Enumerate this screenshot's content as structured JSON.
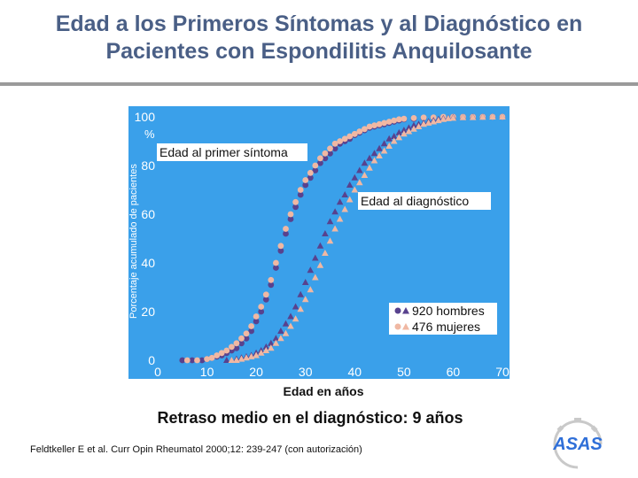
{
  "slide": {
    "title_line1": "Edad a los Primeros Síntomas y al Diagnóstico en",
    "title_line2": "Pacientes con Espondilitis Anquilosante",
    "summary": "Retraso medio en el diagnóstico: 9 años",
    "citation": "Feldtkeller E et al. Curr Opin Rheumatol 2000;12: 239-247 (con autorización)",
    "logo_text": "ASAS"
  },
  "colors": {
    "title": "#4a5f86",
    "plot_background": "#3aa0ea",
    "axis_tick_text": "#ffffff",
    "men": "#58428e",
    "women": "#f0b8a3"
  },
  "chart_data": {
    "type": "scatter",
    "xlabel": "Edad en años",
    "ylabel": "Porcentaje acumulado de pacientes",
    "y_unit": "%",
    "xlim": [
      0,
      70
    ],
    "ylim": [
      0,
      100
    ],
    "xticks": [
      "0",
      "10",
      "20",
      "30",
      "40",
      "50",
      "60",
      "70"
    ],
    "yticks": [
      "0",
      "20",
      "40",
      "60",
      "80",
      "100"
    ],
    "grid": false,
    "legend": {
      "position": "bottom-right",
      "entries": [
        "920 hombres",
        "476 mujeres"
      ]
    },
    "annotations": [
      "Edad al primer síntoma",
      "Edad al diagnóstico"
    ],
    "series": [
      {
        "name": "920 hombres",
        "group": "Edad al primer síntoma",
        "marker": "circle",
        "color": "#58428e",
        "x": [
          5,
          7,
          9,
          10,
          11,
          12,
          13,
          14,
          15,
          16,
          17,
          18,
          19,
          20,
          21,
          22,
          23,
          24,
          25,
          26,
          27,
          28,
          29,
          30,
          31,
          32,
          33,
          34,
          35,
          36,
          37,
          38,
          39,
          40,
          41,
          42,
          43,
          44,
          45,
          46,
          47,
          48,
          49,
          50,
          52,
          54,
          56,
          58,
          60,
          62,
          64,
          66,
          68,
          70
        ],
        "y": [
          0,
          0,
          0,
          0.5,
          1,
          1.5,
          2,
          3,
          4,
          5,
          7,
          9,
          12,
          16,
          20,
          25,
          31,
          38,
          45,
          52,
          58,
          63,
          68,
          72,
          75,
          78,
          81,
          83,
          85,
          87,
          89,
          90,
          91,
          92.5,
          93.5,
          94.5,
          95.5,
          96,
          96.5,
          97,
          97.5,
          98,
          98.5,
          99,
          99.2,
          99.5,
          99.7,
          99.8,
          100,
          100,
          100,
          100,
          100,
          100
        ]
      },
      {
        "name": "476 mujeres",
        "group": "Edad al primer síntoma",
        "marker": "circle",
        "color": "#f0b8a3",
        "x": [
          6,
          8,
          10,
          11,
          12,
          13,
          14,
          15,
          16,
          17,
          18,
          19,
          20,
          21,
          22,
          23,
          24,
          25,
          26,
          27,
          28,
          29,
          30,
          31,
          32,
          33,
          34,
          35,
          36,
          37,
          38,
          39,
          40,
          41,
          42,
          43,
          44,
          45,
          46,
          47,
          48,
          49,
          50,
          52,
          54,
          56,
          58,
          60,
          62,
          64,
          66,
          68,
          70
        ],
        "y": [
          0,
          0,
          0.5,
          1,
          2,
          3,
          4,
          5.5,
          7,
          9,
          11,
          14,
          18,
          22,
          27,
          33,
          40,
          47,
          54,
          60,
          65,
          70,
          74,
          77,
          80,
          83,
          85,
          87,
          89,
          90,
          91,
          92,
          93,
          94,
          95,
          96,
          96.5,
          97,
          97.5,
          98,
          98.5,
          99,
          99.2,
          99.5,
          99.7,
          99.8,
          100,
          100,
          100,
          100,
          100,
          100,
          100
        ]
      },
      {
        "name": "920 hombres",
        "group": "Edad al diagnóstico",
        "marker": "triangle",
        "color": "#58428e",
        "x": [
          14,
          15,
          16,
          17,
          18,
          19,
          20,
          21,
          22,
          23,
          24,
          25,
          26,
          27,
          28,
          29,
          30,
          31,
          32,
          33,
          34,
          35,
          36,
          37,
          38,
          39,
          40,
          41,
          42,
          43,
          44,
          45,
          46,
          47,
          48,
          49,
          50,
          51,
          52,
          53,
          54,
          55,
          56,
          57,
          58,
          59,
          60,
          62,
          64,
          66,
          68,
          70
        ],
        "y": [
          0,
          0,
          0.5,
          1,
          1.5,
          2,
          3,
          4,
          5.5,
          7,
          9,
          12,
          15,
          18,
          22,
          27,
          32,
          37,
          42,
          47,
          52,
          57,
          61,
          65,
          68,
          72,
          75,
          78,
          81,
          83,
          85,
          87,
          89,
          91,
          92,
          93.5,
          94.5,
          95.5,
          96.5,
          97,
          97.5,
          98,
          98.5,
          99,
          99.3,
          99.5,
          99.7,
          99.8,
          99.9,
          100,
          100,
          100
        ]
      },
      {
        "name": "476 mujeres",
        "group": "Edad al diagnóstico",
        "marker": "triangle",
        "color": "#f0b8a3",
        "x": [
          15,
          16,
          17,
          18,
          19,
          20,
          21,
          22,
          23,
          24,
          25,
          26,
          27,
          28,
          29,
          30,
          31,
          32,
          33,
          34,
          35,
          36,
          37,
          38,
          39,
          40,
          41,
          42,
          43,
          44,
          45,
          46,
          47,
          48,
          49,
          50,
          51,
          52,
          53,
          54,
          55,
          56,
          57,
          58,
          59,
          60,
          62,
          64,
          66,
          68,
          70
        ],
        "y": [
          0,
          0,
          0.5,
          1,
          1.5,
          2,
          3,
          4,
          5,
          7,
          9,
          11,
          14,
          17,
          21,
          25,
          29,
          34,
          39,
          44,
          49,
          54,
          58,
          62,
          66,
          70,
          73,
          76,
          79,
          82,
          84,
          86,
          88,
          90,
          91.5,
          93,
          94,
          95,
          96,
          97,
          97.5,
          98,
          98.5,
          99,
          99.3,
          99.5,
          99.7,
          99.8,
          99.9,
          100,
          100
        ]
      }
    ]
  }
}
